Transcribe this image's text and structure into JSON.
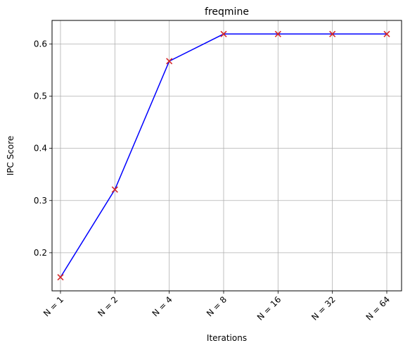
{
  "chart_data": {
    "type": "line",
    "title": "freqmine",
    "xlabel": "Iterations",
    "ylabel": "IPC Score",
    "categories": [
      "N = 1",
      "N = 2",
      "N = 4",
      "N = 8",
      "N = 16",
      "N = 32",
      "N = 64"
    ],
    "series": [
      {
        "values": [
          0.153,
          0.321,
          0.567,
          0.619,
          0.619,
          0.619,
          0.619
        ]
      }
    ],
    "ylim": [
      0.127,
      0.645
    ],
    "yticks": [
      0.2,
      0.3,
      0.4,
      0.5,
      0.6
    ],
    "ytick_labels": [
      "0.2",
      "0.3",
      "0.4",
      "0.5",
      "0.6"
    ],
    "grid": true,
    "line_color": "#0000ff",
    "marker": "x",
    "marker_color": "#d62728"
  }
}
